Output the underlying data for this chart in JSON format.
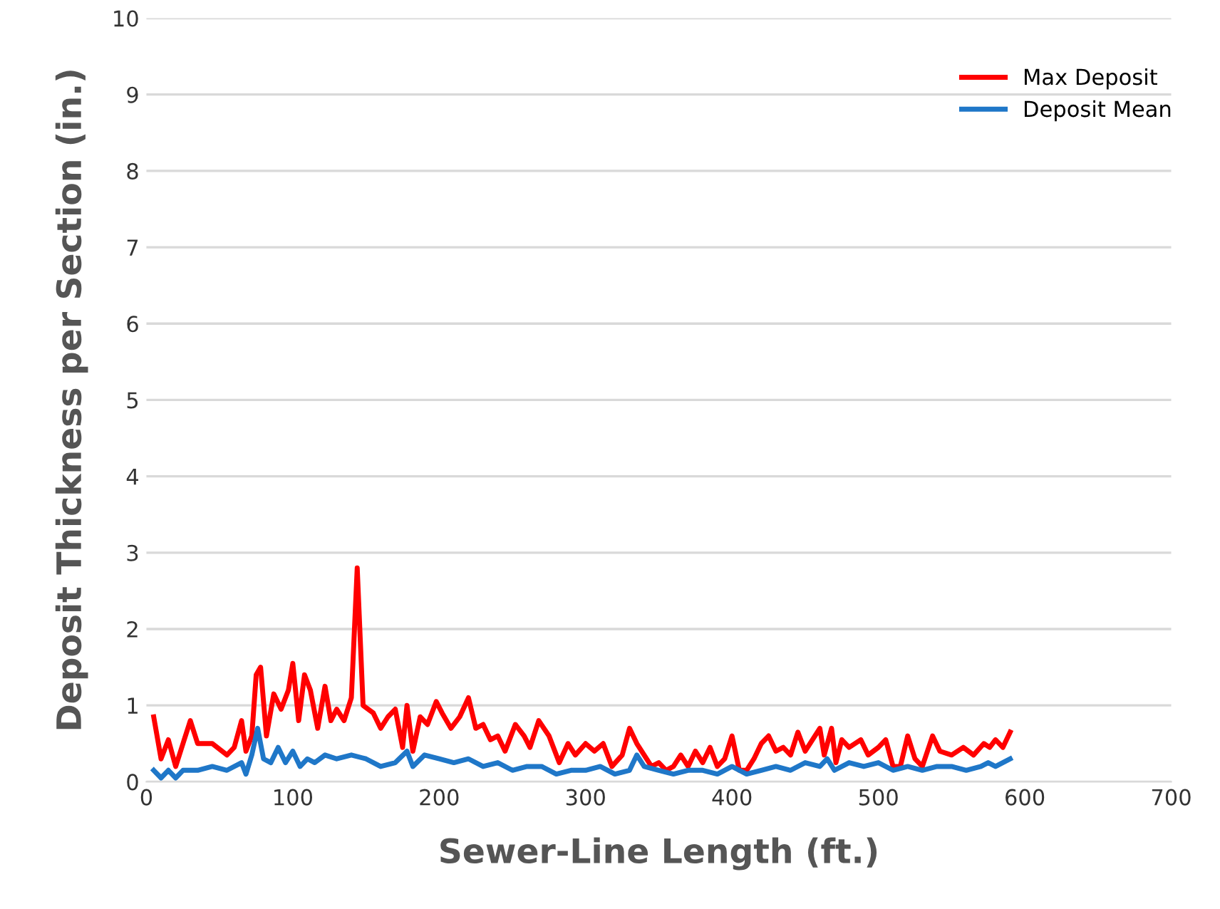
{
  "chart_data": {
    "type": "line",
    "xlabel": "Sewer-Line Length (ft.)",
    "ylabel": "Deposit Thickness per Section (in.)",
    "xlim": [
      0,
      700
    ],
    "xticks": [
      0,
      100,
      200,
      300,
      400,
      500,
      600,
      700
    ],
    "ylim": [
      0,
      10
    ],
    "yticks": [
      0,
      1,
      2,
      3,
      4,
      5,
      6,
      7,
      8,
      9,
      10
    ],
    "grid": "y",
    "legend": "top right",
    "marker": "none",
    "line_style": "solid",
    "series": [
      {
        "name": "Max Deposit",
        "color": "#ff0000",
        "x": [
          5,
          10,
          15,
          20,
          25,
          30,
          35,
          45,
          55,
          60,
          65,
          68,
          72,
          75,
          78,
          82,
          87,
          92,
          97,
          100,
          104,
          108,
          112,
          117,
          122,
          126,
          130,
          135,
          140,
          144,
          148,
          155,
          160,
          165,
          170,
          175,
          178,
          182,
          187,
          192,
          198,
          202,
          208,
          214,
          220,
          225,
          230,
          235,
          240,
          245,
          252,
          258,
          262,
          268,
          275,
          282,
          288,
          293,
          300,
          306,
          312,
          318,
          325,
          330,
          335,
          340,
          345,
          350,
          355,
          360,
          365,
          370,
          375,
          380,
          385,
          390,
          395,
          400,
          405,
          410,
          415,
          420,
          425,
          430,
          435,
          440,
          445,
          450,
          455,
          460,
          463,
          468,
          471,
          475,
          480,
          488,
          493,
          500,
          505,
          510,
          515,
          520,
          525,
          530,
          537,
          542,
          550,
          558,
          565,
          572,
          576,
          580,
          585,
          590
        ],
        "values": [
          0.85,
          0.3,
          0.55,
          0.2,
          0.5,
          0.8,
          0.5,
          0.5,
          0.35,
          0.45,
          0.8,
          0.4,
          0.6,
          1.4,
          1.5,
          0.6,
          1.15,
          0.95,
          1.2,
          1.55,
          0.8,
          1.4,
          1.2,
          0.7,
          1.25,
          0.8,
          0.95,
          0.8,
          1.1,
          2.8,
          1.0,
          0.9,
          0.7,
          0.85,
          0.95,
          0.45,
          1.0,
          0.4,
          0.85,
          0.75,
          1.05,
          0.9,
          0.7,
          0.85,
          1.1,
          0.7,
          0.75,
          0.55,
          0.6,
          0.4,
          0.75,
          0.6,
          0.45,
          0.8,
          0.6,
          0.25,
          0.5,
          0.35,
          0.5,
          0.4,
          0.5,
          0.2,
          0.35,
          0.7,
          0.5,
          0.35,
          0.2,
          0.25,
          0.15,
          0.2,
          0.35,
          0.2,
          0.4,
          0.25,
          0.45,
          0.2,
          0.3,
          0.6,
          0.15,
          0.15,
          0.3,
          0.5,
          0.6,
          0.4,
          0.45,
          0.35,
          0.65,
          0.4,
          0.55,
          0.7,
          0.35,
          0.7,
          0.25,
          0.55,
          0.45,
          0.55,
          0.35,
          0.45,
          0.55,
          0.2,
          0.2,
          0.6,
          0.3,
          0.2,
          0.6,
          0.4,
          0.35,
          0.45,
          0.35,
          0.5,
          0.45,
          0.55,
          0.45,
          0.65
        ]
      },
      {
        "name": "Deposit Mean",
        "color": "#1f77c8",
        "x": [
          5,
          10,
          15,
          20,
          25,
          35,
          45,
          55,
          65,
          68,
          72,
          76,
          80,
          85,
          90,
          95,
          100,
          105,
          110,
          115,
          122,
          130,
          140,
          150,
          160,
          170,
          178,
          182,
          190,
          200,
          210,
          220,
          230,
          240,
          250,
          260,
          270,
          280,
          290,
          300,
          310,
          320,
          330,
          335,
          340,
          350,
          360,
          370,
          380,
          390,
          400,
          410,
          420,
          430,
          440,
          450,
          460,
          465,
          470,
          480,
          490,
          500,
          510,
          520,
          530,
          540,
          550,
          560,
          570,
          575,
          580,
          590
        ],
        "values": [
          0.15,
          0.05,
          0.15,
          0.05,
          0.15,
          0.15,
          0.2,
          0.15,
          0.25,
          0.1,
          0.35,
          0.7,
          0.3,
          0.25,
          0.45,
          0.25,
          0.4,
          0.2,
          0.3,
          0.25,
          0.35,
          0.3,
          0.35,
          0.3,
          0.2,
          0.25,
          0.4,
          0.2,
          0.35,
          0.3,
          0.25,
          0.3,
          0.2,
          0.25,
          0.15,
          0.2,
          0.2,
          0.1,
          0.15,
          0.15,
          0.2,
          0.1,
          0.15,
          0.35,
          0.2,
          0.15,
          0.1,
          0.15,
          0.15,
          0.1,
          0.2,
          0.1,
          0.15,
          0.2,
          0.15,
          0.25,
          0.2,
          0.3,
          0.15,
          0.25,
          0.2,
          0.25,
          0.15,
          0.2,
          0.15,
          0.2,
          0.2,
          0.15,
          0.2,
          0.25,
          0.2,
          0.3
        ]
      }
    ]
  }
}
